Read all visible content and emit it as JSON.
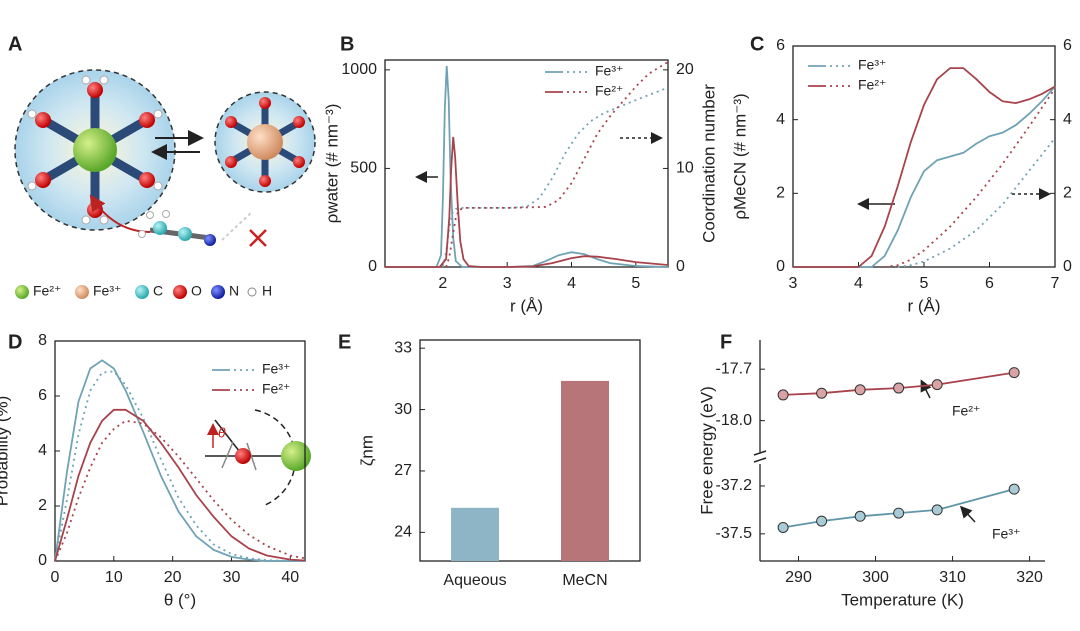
{
  "schematic": {
    "panel_label": "A",
    "legend": [
      "Fe²⁺",
      "Fe³⁺",
      "C",
      "O",
      "N",
      "H"
    ]
  },
  "chart_data": [
    {
      "type": "line",
      "panel_label": "B",
      "xlabel": "r (Å)",
      "ylabel": "ρwater (# nm⁻³)",
      "y2label": "Coordination number",
      "xlim": [
        1.1,
        5.5
      ],
      "xticks": [
        2,
        3,
        4,
        5
      ],
      "ylim": [
        0,
        1050
      ],
      "yticks": [
        0,
        500,
        1000
      ],
      "y2lim": [
        0,
        21
      ],
      "y2ticks": [
        0,
        10,
        20
      ],
      "series": [
        {
          "name": "Fe³⁺",
          "color": "#6fa3b3",
          "lines": [
            {
              "style": "solid",
              "x": [
                1.1,
                1.9,
                1.97,
                2.0,
                2.03,
                2.06,
                2.09,
                2.12,
                2.16,
                2.2,
                2.3,
                2.5,
                3.0,
                3.4,
                3.6,
                3.8,
                4.0,
                4.2,
                4.4,
                4.6,
                5.0,
                5.5
              ],
              "values": [
                0,
                0,
                60,
                350,
                800,
                1020,
                850,
                450,
                150,
                30,
                0,
                0,
                0,
                5,
                30,
                60,
                75,
                65,
                40,
                20,
                5,
                0
              ]
            },
            {
              "style": "dotted",
              "axis": "y2",
              "x": [
                2.0,
                2.05,
                2.1,
                2.15,
                2.2,
                2.3,
                3.0,
                3.3,
                3.5,
                3.7,
                3.9,
                4.1,
                4.3,
                4.5,
                4.8,
                5.1,
                5.5
              ],
              "values": [
                0,
                1.5,
                4,
                5.5,
                5.9,
                6,
                6,
                6.1,
                7,
                9,
                11.5,
                13.5,
                14.8,
                15.6,
                16.4,
                17.2,
                18.2
              ]
            }
          ]
        },
        {
          "name": "Fe²⁺",
          "color": "#a8434c",
          "lines": [
            {
              "style": "solid",
              "x": [
                1.1,
                1.95,
                2.05,
                2.1,
                2.13,
                2.16,
                2.19,
                2.23,
                2.27,
                2.32,
                2.4,
                2.6,
                3.0,
                3.4,
                3.7,
                4.0,
                4.2,
                4.4,
                4.7,
                5.0,
                5.5
              ],
              "values": [
                0,
                0,
                40,
                250,
                500,
                660,
                560,
                320,
                130,
                40,
                5,
                0,
                0,
                3,
                20,
                45,
                55,
                52,
                40,
                25,
                10
              ]
            },
            {
              "style": "dotted",
              "axis": "y2",
              "x": [
                2.05,
                2.1,
                2.15,
                2.2,
                2.25,
                2.35,
                3.0,
                3.6,
                3.8,
                4.0,
                4.2,
                4.4,
                4.6,
                4.8,
                5.0,
                5.2,
                5.5
              ],
              "values": [
                0,
                1,
                3,
                5,
                5.8,
                6,
                6,
                6.1,
                6.8,
                8.5,
                11,
                13.5,
                15.3,
                16.8,
                18.3,
                19.6,
                20.8
              ]
            }
          ]
        }
      ]
    },
    {
      "type": "line",
      "panel_label": "C",
      "xlabel": "r (Å)",
      "ylabel": "ρMeCN (# nm⁻³)",
      "xlim": [
        3,
        7
      ],
      "xticks": [
        3,
        4,
        5,
        6,
        7
      ],
      "ylim": [
        0,
        6
      ],
      "yticks": [
        0,
        2,
        4,
        6
      ],
      "y2lim": [
        0,
        6
      ],
      "y2ticks": [
        0,
        2,
        4,
        6
      ],
      "series": [
        {
          "name": "Fe³⁺",
          "color": "#6fa3b3",
          "lines": [
            {
              "style": "solid",
              "x": [
                3,
                4.2,
                4.4,
                4.6,
                4.8,
                5.0,
                5.2,
                5.4,
                5.6,
                5.8,
                6.0,
                6.2,
                6.4,
                6.6,
                6.8,
                7.0
              ],
              "values": [
                0,
                0,
                0.3,
                1.0,
                1.9,
                2.6,
                2.9,
                3.0,
                3.1,
                3.35,
                3.55,
                3.65,
                3.85,
                4.15,
                4.5,
                4.9
              ]
            },
            {
              "style": "dotted",
              "axis": "y2",
              "x": [
                4.6,
                4.8,
                5.0,
                5.4,
                5.8,
                6.2,
                6.6,
                7.0
              ],
              "values": [
                0,
                0.05,
                0.15,
                0.5,
                1.0,
                1.7,
                2.6,
                3.5
              ]
            }
          ]
        },
        {
          "name": "Fe²⁺",
          "color": "#a8434c",
          "lines": [
            {
              "style": "solid",
              "x": [
                3,
                4.0,
                4.2,
                4.4,
                4.6,
                4.8,
                5.0,
                5.2,
                5.4,
                5.6,
                5.8,
                6.0,
                6.2,
                6.4,
                6.6,
                6.8,
                7.0
              ],
              "values": [
                0,
                0,
                0.3,
                1.1,
                2.2,
                3.4,
                4.4,
                5.1,
                5.4,
                5.4,
                5.1,
                4.75,
                4.5,
                4.45,
                4.55,
                4.7,
                4.9
              ]
            },
            {
              "style": "dotted",
              "axis": "y2",
              "x": [
                4.4,
                4.6,
                4.8,
                5.0,
                5.4,
                5.8,
                6.2,
                6.6,
                7.0
              ],
              "values": [
                0,
                0.05,
                0.2,
                0.45,
                1.1,
                1.9,
                2.8,
                3.8,
                4.85
              ]
            }
          ]
        }
      ]
    },
    {
      "type": "line",
      "panel_label": "D",
      "xlabel": "θ (°)",
      "ylabel": "Probability (%)",
      "inset_label": "θ",
      "xlim": [
        0,
        42.5
      ],
      "xticks": [
        0,
        10,
        20,
        30,
        40
      ],
      "ylim": [
        0,
        8
      ],
      "yticks": [
        0,
        2,
        4,
        6,
        8
      ],
      "series": [
        {
          "name": "Fe³⁺",
          "color": "#6fa3b3",
          "lines": [
            {
              "style": "solid",
              "x": [
                0,
                2,
                4,
                6,
                8,
                10,
                12,
                15,
                18,
                21,
                24,
                27,
                30,
                33,
                36,
                40,
                42.5
              ],
              "values": [
                0,
                3.2,
                5.8,
                7.0,
                7.3,
                7.0,
                6.2,
                4.7,
                3.1,
                1.8,
                0.9,
                0.4,
                0.15,
                0.05,
                0,
                0,
                0
              ]
            },
            {
              "style": "dotted",
              "x": [
                0,
                2,
                4,
                6,
                8,
                10,
                12,
                15,
                18,
                21,
                24,
                27,
                30,
                33,
                36,
                40,
                42.5
              ],
              "values": [
                0,
                2.2,
                4.6,
                6.2,
                6.85,
                6.9,
                6.4,
                5.2,
                3.7,
                2.3,
                1.3,
                0.6,
                0.25,
                0.1,
                0.03,
                0,
                0
              ]
            }
          ]
        },
        {
          "name": "Fe²⁺",
          "color": "#a8434c",
          "lines": [
            {
              "style": "solid",
              "x": [
                0,
                2,
                4,
                6,
                8,
                10,
                12,
                15,
                18,
                21,
                24,
                27,
                30,
                33,
                36,
                40,
                42.5
              ],
              "values": [
                0,
                1.5,
                3.1,
                4.3,
                5.1,
                5.5,
                5.5,
                5.1,
                4.3,
                3.4,
                2.4,
                1.6,
                0.9,
                0.45,
                0.2,
                0.05,
                0.02
              ]
            },
            {
              "style": "dotted",
              "x": [
                0,
                2,
                4,
                6,
                8,
                10,
                12,
                15,
                18,
                21,
                24,
                27,
                30,
                33,
                36,
                40,
                42.5
              ],
              "values": [
                0,
                1.0,
                2.3,
                3.4,
                4.3,
                4.8,
                5.1,
                5.0,
                4.5,
                3.8,
                3.0,
                2.2,
                1.5,
                0.95,
                0.55,
                0.2,
                0.1
              ]
            }
          ]
        }
      ]
    },
    {
      "type": "bar",
      "panel_label": "E",
      "ylabel": "ζnm",
      "categories": [
        "Aqueous",
        "MeCN"
      ],
      "values": [
        25.2,
        31.4
      ],
      "colors": [
        "#8db5c5",
        "#b87579"
      ],
      "ylim": [
        22.6,
        33.4
      ],
      "yticks": [
        24,
        27,
        30,
        33
      ]
    },
    {
      "type": "scatter",
      "panel_label": "F",
      "xlabel": "Temperature (K)",
      "ylabel": "Free energy (eV)",
      "xlim": [
        285,
        322
      ],
      "xticks": [
        290,
        300,
        310,
        320
      ],
      "segments": [
        {
          "ylim": [
            -18.2,
            -17.53
          ],
          "yticks": [
            -17.7,
            {
              "value": -18,
              "label": "-18.0"
            }
          ]
        },
        {
          "ylim": [
            -37.67,
            -37.05
          ],
          "yticks": [
            -37.2,
            -37.5
          ]
        }
      ],
      "series": [
        {
          "name": "Fe²⁺",
          "color": "#a8434c",
          "fill": "#d9a3a6",
          "segment": 0,
          "x": [
            288,
            293,
            298,
            303,
            308,
            318
          ],
          "values": [
            -17.85,
            -17.84,
            -17.82,
            -17.81,
            -17.79,
            -17.72
          ]
        },
        {
          "name": "Fe³⁺",
          "color": "#5f96a8",
          "fill": "#a9cbd6",
          "segment": 1,
          "x": [
            288,
            293,
            298,
            303,
            308,
            318
          ],
          "values": [
            -37.46,
            -37.42,
            -37.39,
            -37.37,
            -37.35,
            -37.22
          ]
        }
      ]
    }
  ]
}
